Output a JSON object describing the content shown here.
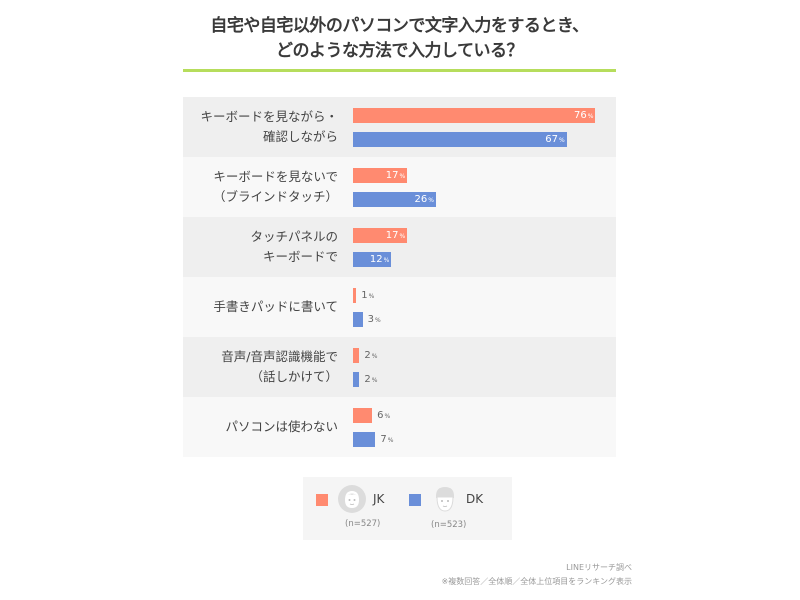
{
  "title": {
    "line1": "自宅や自宅以外のパソコンで文字入力をするとき、",
    "line2": "どのような方法で入力している？"
  },
  "colors": {
    "jk": "#ff8a70",
    "dk": "#6a8fd9",
    "title_rule": "#b6dd5c",
    "row_dark": "#efefef",
    "row_light": "#f8f8f8"
  },
  "rows": [
    {
      "label1": "キーボードを見ながら・",
      "label2": "確認しながら",
      "jk": "76",
      "dk": "67"
    },
    {
      "label1": "キーボードを見ないで",
      "label2": "（ブラインドタッチ）",
      "jk": "17",
      "dk": "26"
    },
    {
      "label1": "タッチパネルの",
      "label2": "キーボードで",
      "jk": "17",
      "dk": "12"
    },
    {
      "label1": "手書きパッドに書いて",
      "label2": "",
      "jk": "1",
      "dk": "3"
    },
    {
      "label1": "音声/音声認識機能で",
      "label2": "（話しかけて）",
      "jk": "2",
      "dk": "2"
    },
    {
      "label1": "パソコンは使わない",
      "label2": "",
      "jk": "6",
      "dk": "7"
    }
  ],
  "pct_symbol": "%",
  "legend": {
    "jk": {
      "name": "JK",
      "n": "(n=527)",
      "icon": "girl-face-icon"
    },
    "dk": {
      "name": "DK",
      "n": "(n=523)",
      "icon": "boy-face-icon"
    }
  },
  "footer": {
    "source": "LINEリサーチ調べ",
    "note": "※複数回答／全体順／全体上位項目をランキング表示"
  },
  "chart_data": {
    "type": "bar",
    "orientation": "horizontal",
    "title": "自宅や自宅以外のパソコンで文字入力をするとき、どのような方法で入力している？",
    "categories": [
      "キーボードを見ながら・確認しながら",
      "キーボードを見ないで（ブラインドタッチ）",
      "タッチパネルのキーボードで",
      "手書きパッドに書いて",
      "音声/音声認識機能で（話しかけて）",
      "パソコンは使わない"
    ],
    "series": [
      {
        "name": "JK (n=527)",
        "color": "#ff8a70",
        "values": [
          76,
          17,
          17,
          1,
          2,
          6
        ]
      },
      {
        "name": "DK (n=523)",
        "color": "#6a8fd9",
        "values": [
          67,
          26,
          12,
          3,
          2,
          7
        ]
      }
    ],
    "unit": "%",
    "xlim": [
      0,
      100
    ],
    "grid": false,
    "legend_position": "bottom",
    "annotations": [
      "LINEリサーチ調べ",
      "※複数回答／全体順／全体上位項目をランキング表示"
    ]
  }
}
